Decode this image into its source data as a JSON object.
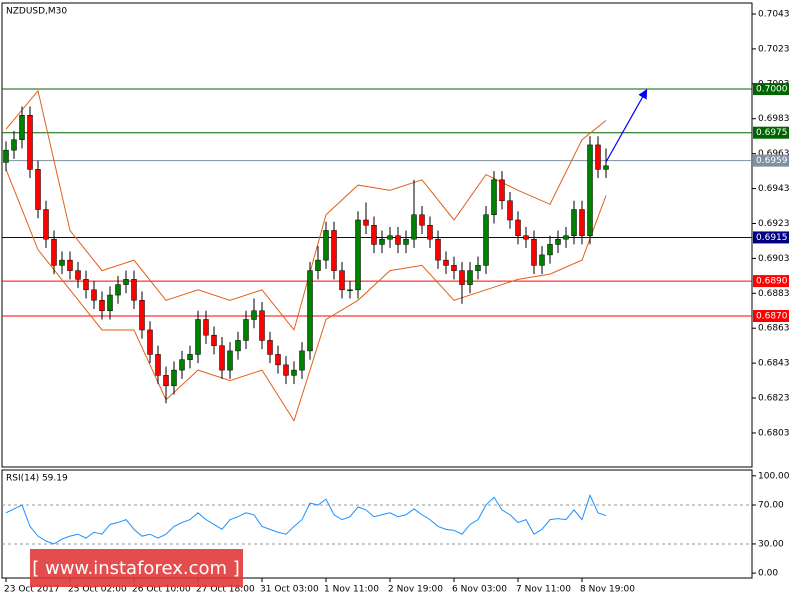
{
  "chart_data": [
    {
      "type": "candlestick",
      "title": "NZDUSD,M30",
      "open": [
        0.6958,
        0.6965,
        0.6971,
        0.6985,
        0.6954,
        0.6931,
        0.6914,
        0.6899,
        0.6902,
        0.6896,
        0.6891,
        0.6885,
        0.6879,
        0.6873,
        0.6882,
        0.6888,
        0.6891,
        0.6879,
        0.6862,
        0.6848,
        0.6836,
        0.683,
        0.6839,
        0.6845,
        0.6848,
        0.6868,
        0.6859,
        0.6853,
        0.6839,
        0.685,
        0.6856,
        0.6868,
        0.6873,
        0.6856,
        0.6848,
        0.6842,
        0.6836,
        0.6839,
        0.685,
        0.6896,
        0.6902,
        0.6919,
        0.6896,
        0.6885,
        0.6885,
        0.6925,
        0.6922,
        0.6911,
        0.6914,
        0.6916,
        0.6911,
        0.6914,
        0.6928,
        0.6922,
        0.6914,
        0.6902,
        0.6899,
        0.6896,
        0.6888,
        0.6896,
        0.6899,
        0.6928,
        0.6948,
        0.6936,
        0.6925,
        0.6916,
        0.6914,
        0.6899,
        0.6905,
        0.6911,
        0.6914,
        0.6916,
        0.6931,
        0.6916,
        0.6968,
        0.6954
      ],
      "high": [
        0.697,
        0.6976,
        0.699,
        0.699,
        0.6959,
        0.6936,
        0.6919,
        0.6907,
        0.6907,
        0.6901,
        0.6896,
        0.689,
        0.6884,
        0.6887,
        0.6893,
        0.6896,
        0.6896,
        0.6884,
        0.6867,
        0.6853,
        0.6841,
        0.6844,
        0.685,
        0.6853,
        0.6873,
        0.6873,
        0.6864,
        0.6858,
        0.6855,
        0.6861,
        0.6873,
        0.688,
        0.6878,
        0.6861,
        0.6853,
        0.6847,
        0.6844,
        0.6855,
        0.6901,
        0.691,
        0.6924,
        0.6924,
        0.6901,
        0.689,
        0.693,
        0.6935,
        0.6927,
        0.6919,
        0.6921,
        0.6921,
        0.6919,
        0.6948,
        0.6933,
        0.6927,
        0.6919,
        0.6907,
        0.6904,
        0.6901,
        0.6901,
        0.6904,
        0.6933,
        0.6953,
        0.6953,
        0.6941,
        0.693,
        0.6921,
        0.6919,
        0.691,
        0.6916,
        0.6919,
        0.6921,
        0.6936,
        0.6936,
        0.6973,
        0.6973,
        0.6966
      ],
      "low": [
        0.6953,
        0.696,
        0.6966,
        0.6949,
        0.6926,
        0.6909,
        0.6894,
        0.6894,
        0.6891,
        0.6886,
        0.688,
        0.6874,
        0.6868,
        0.6868,
        0.6877,
        0.6883,
        0.6874,
        0.6857,
        0.6843,
        0.6831,
        0.682,
        0.6825,
        0.6834,
        0.684,
        0.6843,
        0.6854,
        0.6848,
        0.6834,
        0.6834,
        0.6845,
        0.6851,
        0.6863,
        0.6851,
        0.6843,
        0.6837,
        0.6831,
        0.6831,
        0.6834,
        0.6845,
        0.6891,
        0.6897,
        0.6891,
        0.688,
        0.688,
        0.688,
        0.6917,
        0.6906,
        0.6906,
        0.6909,
        0.6906,
        0.6906,
        0.6909,
        0.6917,
        0.6909,
        0.6897,
        0.6894,
        0.6891,
        0.6877,
        0.6883,
        0.6891,
        0.6894,
        0.6923,
        0.6931,
        0.692,
        0.6911,
        0.6909,
        0.6894,
        0.6894,
        0.69,
        0.6906,
        0.6909,
        0.6911,
        0.6911,
        0.6911,
        0.6949,
        0.6949
      ],
      "close": [
        0.6965,
        0.6971,
        0.6985,
        0.6954,
        0.6931,
        0.6914,
        0.6899,
        0.6902,
        0.6896,
        0.6891,
        0.6885,
        0.6879,
        0.6873,
        0.6882,
        0.6888,
        0.6891,
        0.6879,
        0.6862,
        0.6848,
        0.6836,
        0.683,
        0.6839,
        0.6845,
        0.6848,
        0.6868,
        0.6859,
        0.6853,
        0.6839,
        0.685,
        0.6856,
        0.6868,
        0.6873,
        0.6856,
        0.6848,
        0.6842,
        0.6836,
        0.6839,
        0.685,
        0.6896,
        0.6902,
        0.6919,
        0.6896,
        0.6885,
        0.6885,
        0.6925,
        0.6922,
        0.6911,
        0.6914,
        0.6916,
        0.6911,
        0.6914,
        0.6928,
        0.6922,
        0.6914,
        0.6902,
        0.6899,
        0.6896,
        0.6888,
        0.6896,
        0.6899,
        0.6928,
        0.6948,
        0.6936,
        0.6925,
        0.6916,
        0.6914,
        0.6899,
        0.6905,
        0.6911,
        0.6914,
        0.6916,
        0.6931,
        0.6916,
        0.6968,
        0.6954,
        0.6956
      ],
      "up_color": "#008000",
      "down_color": "#ff0000",
      "bands": {
        "color": "#e0601a",
        "x": [
          0,
          4,
          8,
          12,
          16,
          20,
          24,
          28,
          32,
          36,
          40,
          44,
          48,
          52,
          56,
          60,
          64,
          68,
          72,
          75
        ],
        "upper": [
          0.6977,
          0.6999,
          0.6919,
          0.6896,
          0.6902,
          0.6879,
          0.6885,
          0.6879,
          0.6885,
          0.6862,
          0.6928,
          0.6945,
          0.6942,
          0.6948,
          0.6925,
          0.6951,
          0.6942,
          0.6934,
          0.6971,
          0.6982
        ],
        "lower": [
          0.6954,
          0.6908,
          0.6885,
          0.6862,
          0.6862,
          0.6822,
          0.6839,
          0.6833,
          0.6839,
          0.681,
          0.6868,
          0.6879,
          0.6896,
          0.6899,
          0.6879,
          0.6885,
          0.6891,
          0.6894,
          0.6902,
          0.6939
        ]
      },
      "levels": [
        {
          "value": 0.7,
          "label": "0.7000",
          "color": "#006400"
        },
        {
          "value": 0.6975,
          "label": "0.6975",
          "color": "#006400"
        },
        {
          "value": 0.6959,
          "label": "0.6959",
          "color": "#8090a0"
        },
        {
          "value": 0.6915,
          "label": "0.6915",
          "color": "#000080"
        },
        {
          "value": 0.689,
          "label": "0.6890",
          "color": "#ff0000"
        },
        {
          "value": 0.687,
          "label": "0.6870",
          "color": "#ff0000"
        }
      ],
      "xlim": [
        -0.5,
        93.25
      ],
      "ylim": [
        0.67835,
        0.70493
      ],
      "yticks": [
        0.7043,
        0.7023,
        0.7003,
        0.6983,
        0.6963,
        0.6943,
        0.6923,
        0.6903,
        0.6883,
        0.6863,
        0.6843,
        0.6823,
        0.6803
      ]
    },
    {
      "type": "line",
      "title": "RSI(14) 59.19",
      "color": "#1e90ff",
      "values": [
        62,
        66,
        70,
        48,
        38,
        33,
        30,
        35,
        38,
        40,
        36,
        42,
        40,
        50,
        52,
        55,
        45,
        38,
        40,
        36,
        40,
        48,
        52,
        55,
        62,
        55,
        50,
        45,
        55,
        58,
        62,
        60,
        48,
        45,
        42,
        40,
        48,
        55,
        72,
        70,
        76,
        60,
        55,
        58,
        68,
        65,
        58,
        60,
        62,
        58,
        60,
        66,
        60,
        55,
        48,
        45,
        44,
        40,
        50,
        55,
        70,
        78,
        65,
        60,
        52,
        55,
        40,
        45,
        55,
        56,
        55,
        65,
        55,
        80,
        62,
        59.19
      ],
      "xlim": [
        -0.5,
        93.25
      ],
      "ylim": [
        -5,
        106
      ],
      "yticks": [
        {
          "value": 100,
          "label": "100.00"
        },
        {
          "value": 70,
          "label": "70.00"
        },
        {
          "value": 30,
          "label": "30.00"
        },
        {
          "value": 0,
          "label": "0.00"
        }
      ],
      "xticks": [
        {
          "value": 0,
          "label": "23 Oct 2017"
        },
        {
          "value": 8,
          "label": "25 Oct 02:00"
        },
        {
          "value": 16,
          "label": "26 Oct 10:00"
        },
        {
          "value": 24,
          "label": "27 Oct 18:00"
        },
        {
          "value": 32,
          "label": "31 Oct 03:00"
        },
        {
          "value": 40,
          "label": "1 Nov 11:00"
        },
        {
          "value": 48,
          "label": "2 Nov 19:00"
        },
        {
          "value": 56,
          "label": "6 Nov 03:00"
        },
        {
          "value": 64,
          "label": "7 Nov 11:00"
        },
        {
          "value": 72,
          "label": "8 Nov 19:00"
        }
      ]
    }
  ],
  "watermark": "[ www.instaforex.com ]"
}
